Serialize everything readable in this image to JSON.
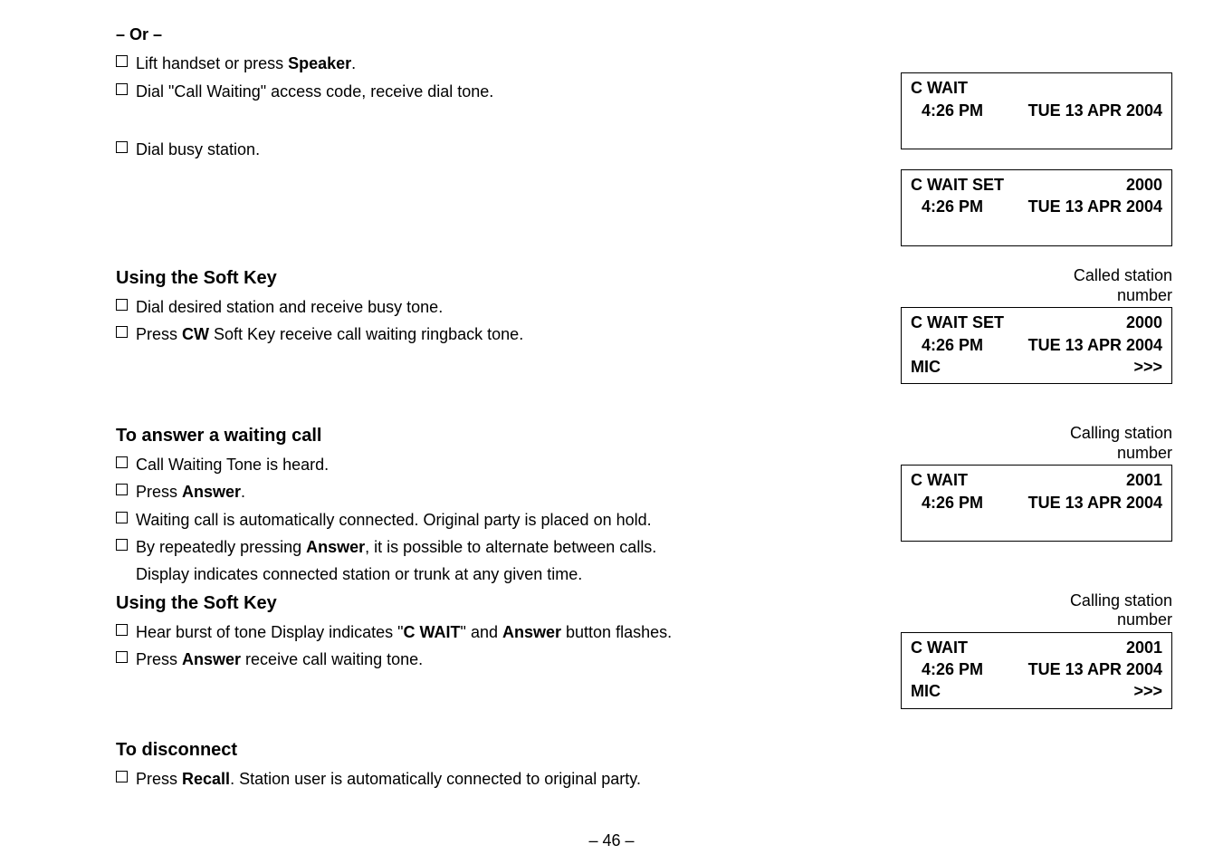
{
  "or_label": "– Or –",
  "block1": {
    "lift": "Lift handset or press ",
    "liftB": "Speaker",
    "liftEnd": ".",
    "dialAccess": "Dial \"Call Waiting\" access code, receive dial tone.",
    "dialBusy": "Dial busy station."
  },
  "lcd1": {
    "l1_left": "C WAIT",
    "l2_left": "4:26 PM",
    "l2_right": "TUE 13  APR 2004"
  },
  "lcd2": {
    "l1_left": "C WAIT SET",
    "l1_right": "2000",
    "l2_left": "4:26 PM",
    "l2_right": "TUE 13  APR 2004"
  },
  "softkey1": {
    "heading": "Using the Soft Key",
    "line1": "Dial desired station and receive busy tone.",
    "line2a": "Press ",
    "line2b": "CW",
    "line2c": " Soft Key receive call waiting ringback tone."
  },
  "lcd3_caption": "Called station\nnumber",
  "lcd3": {
    "l1_left": "C WAIT SET",
    "l1_right": "2000",
    "l2_left": "4:26 PM",
    "l2_right": "TUE 13  APR 2004",
    "l3_left": "MIC",
    "l3_right": ">>>"
  },
  "answer": {
    "heading": "To answer a waiting call",
    "l1": "Call Waiting Tone is heard.",
    "l2a": "Press ",
    "l2b": "Answer",
    "l2c": ".",
    "l3": "Waiting call is automatically connected. Original party is placed on hold.",
    "l4a": "By repeatedly pressing ",
    "l4b": "Answer",
    "l4c": ", it is possible to alternate between calls.",
    "l5": "Display indicates connected station or trunk at any given time."
  },
  "lcd4_caption": "Calling station\nnumber",
  "lcd4": {
    "l1_left": "C WAIT",
    "l1_right": "2001",
    "l2_left": "4:26 PM",
    "l2_right": "TUE 13  APR 2004"
  },
  "softkey2": {
    "heading": "Using the Soft Key",
    "l1a": "Hear burst of tone Display indicates \"",
    "l1b": "C WAIT",
    "l1c": "\" and ",
    "l1d": "Answer",
    "l1e": " button flashes.",
    "l2a": "Press ",
    "l2b": "Answer",
    "l2c": " receive call waiting tone."
  },
  "lcd5_caption": "Calling station\nnumber",
  "lcd5": {
    "l1_left": "C WAIT",
    "l1_right": "2001",
    "l2_left": "4:26 PM",
    "l2_right": "TUE 13  APR 2004",
    "l3_left": "MIC",
    "l3_right": ">>>"
  },
  "disconnect": {
    "heading": "To disconnect",
    "l1a": "Press ",
    "l1b": "Recall",
    "l1c": ". Station user is automatically connected to original party."
  },
  "page_number": "– 46 –"
}
